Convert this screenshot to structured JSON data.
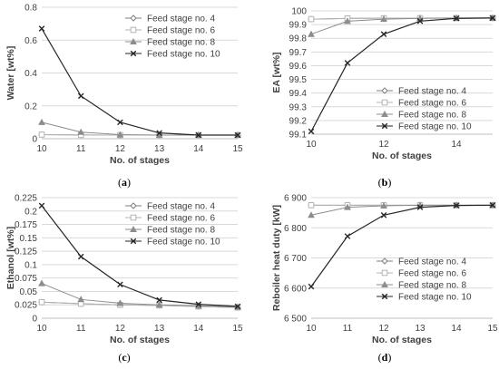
{
  "chart_data": [
    {
      "type": "line",
      "panel": "a",
      "caption": "(a)",
      "x": [
        10,
        11,
        12,
        13,
        14,
        15
      ],
      "xlabel": "No. of stages",
      "ylabel": "Water [wt%]",
      "xlim": [
        10,
        15
      ],
      "ylim": [
        0,
        0.8
      ],
      "xticks": [
        "10",
        "11",
        "12",
        "13",
        "14",
        "15"
      ],
      "yticks": [
        "0",
        "0.2",
        "0.4",
        "0.6",
        "0.8"
      ],
      "grid": true,
      "legend_position": "top-right",
      "series": [
        {
          "name": "Feed stage no. 4",
          "marker": "diamond",
          "values": [
            0.025,
            0.023,
            0.022,
            0.022,
            0.022,
            0.022
          ]
        },
        {
          "name": "Feed stage no. 6",
          "marker": "square",
          "values": [
            0.025,
            0.023,
            0.022,
            0.022,
            0.022,
            0.022
          ]
        },
        {
          "name": "Feed stage no. 8",
          "marker": "triangle",
          "values": [
            0.1,
            0.04,
            0.025,
            0.022,
            0.022,
            0.022
          ]
        },
        {
          "name": "Feed stage no. 10",
          "marker": "x",
          "values": [
            0.67,
            0.26,
            0.1,
            0.035,
            0.022,
            0.022
          ]
        }
      ]
    },
    {
      "type": "line",
      "panel": "b",
      "caption": "(b)",
      "x": [
        10,
        11,
        12,
        13,
        14,
        15
      ],
      "xlabel": "No. of stages",
      "ylabel": "EA [wt%]",
      "xlim": [
        10,
        15
      ],
      "ylim": [
        99.1,
        100
      ],
      "xticks": [
        "10",
        "12",
        "14"
      ],
      "xtick_values": [
        10,
        12,
        14
      ],
      "yticks": [
        "99.1",
        "99.2",
        "99.3",
        "99.4",
        "99.5",
        "99.6",
        "99.7",
        "99.8",
        "99.9",
        "100"
      ],
      "grid": true,
      "legend_position": "bottom-right",
      "series": [
        {
          "name": "Feed stage no. 4",
          "marker": "diamond",
          "values": [
            99.94,
            99.945,
            99.946,
            99.947,
            99.948,
            99.948
          ]
        },
        {
          "name": "Feed stage no. 6",
          "marker": "square",
          "values": [
            99.94,
            99.945,
            99.946,
            99.947,
            99.948,
            99.948
          ]
        },
        {
          "name": "Feed stage no. 8",
          "marker": "triangle",
          "values": [
            99.83,
            99.925,
            99.94,
            99.945,
            99.947,
            99.948
          ]
        },
        {
          "name": "Feed stage no. 10",
          "marker": "x",
          "values": [
            99.12,
            99.62,
            99.83,
            99.925,
            99.945,
            99.948
          ]
        }
      ]
    },
    {
      "type": "line",
      "panel": "c",
      "caption": "(c)",
      "x": [
        10,
        11,
        12,
        13,
        14,
        15
      ],
      "xlabel": "No. of stages",
      "ylabel": "Ethanol [wt%]",
      "xlim": [
        10,
        15
      ],
      "ylim": [
        0,
        0.225
      ],
      "xticks": [
        "10",
        "11",
        "12",
        "13",
        "14",
        "15"
      ],
      "yticks": [
        "0",
        "0.025",
        "0.05",
        "0.075",
        "0.1",
        "0.125",
        "0.15",
        "0.175",
        "0.2",
        "0.225"
      ],
      "grid": true,
      "legend_position": "top-right",
      "series": [
        {
          "name": "Feed stage no. 4",
          "marker": "diamond",
          "values": [
            0.03,
            0.027,
            0.025,
            0.024,
            0.022,
            0.02
          ]
        },
        {
          "name": "Feed stage no. 6",
          "marker": "square",
          "values": [
            0.03,
            0.027,
            0.025,
            0.024,
            0.022,
            0.02
          ]
        },
        {
          "name": "Feed stage no. 8",
          "marker": "triangle",
          "values": [
            0.065,
            0.035,
            0.028,
            0.025,
            0.023,
            0.021
          ]
        },
        {
          "name": "Feed stage no. 10",
          "marker": "x",
          "values": [
            0.21,
            0.115,
            0.063,
            0.034,
            0.026,
            0.022
          ]
        }
      ]
    },
    {
      "type": "line",
      "panel": "d",
      "caption": "(d)",
      "x": [
        10,
        11,
        12,
        13,
        14,
        15
      ],
      "xlabel": "No. of stages",
      "ylabel": "Reboiler heat duty [kW]",
      "xlim": [
        10,
        15
      ],
      "ylim": [
        6500,
        6900
      ],
      "xticks": [
        "10",
        "11",
        "12",
        "13",
        "14",
        "15"
      ],
      "yticks": [
        "6 500",
        "6 600",
        "6 700",
        "6 800",
        "6 900"
      ],
      "grid": true,
      "legend_position": "bottom-right",
      "series": [
        {
          "name": "Feed stage no. 4",
          "marker": "diamond",
          "values": [
            6875,
            6875,
            6875,
            6875,
            6875,
            6875
          ]
        },
        {
          "name": "Feed stage no. 6",
          "marker": "square",
          "values": [
            6875,
            6875,
            6875,
            6875,
            6875,
            6875
          ]
        },
        {
          "name": "Feed stage no. 8",
          "marker": "triangle",
          "values": [
            6842,
            6868,
            6873,
            6875,
            6875,
            6875
          ]
        },
        {
          "name": "Feed stage no. 10",
          "marker": "x",
          "values": [
            6605,
            6772,
            6842,
            6868,
            6874,
            6875
          ]
        }
      ]
    }
  ]
}
